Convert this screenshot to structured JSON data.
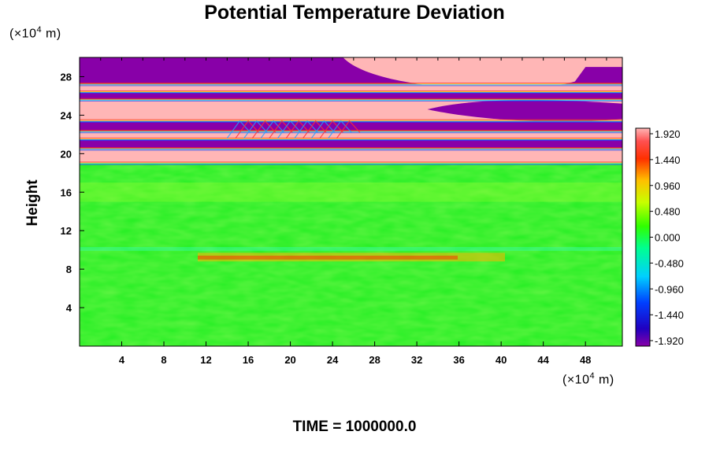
{
  "chart_data": {
    "type": "heatmap",
    "title": "Potential Temperature Deviation",
    "ylabel": "Height",
    "xlabel": "",
    "x_unit": "m",
    "y_unit": "m",
    "unit_scale_prefix": "(×10",
    "unit_scale_exp": "4",
    "unit_suffix": "m)",
    "footer": "TIME = 1000000.0",
    "xlim": [
      0,
      51.5
    ],
    "ylim": [
      0,
      30
    ],
    "x_ticks": [
      4,
      8,
      12,
      16,
      20,
      24,
      28,
      32,
      36,
      40,
      44,
      48
    ],
    "y_ticks": [
      4,
      8,
      12,
      16,
      20,
      24,
      28
    ],
    "colorbar": {
      "min": -1.92,
      "max": 1.92,
      "labels": [
        "1.920",
        "1.440",
        "0.960",
        "0.480",
        "0.000",
        "-0.480",
        "-0.960",
        "-1.440",
        "-1.920"
      ]
    },
    "regions": [
      {
        "y_range": [
          0,
          9
        ],
        "value": 0.1
      },
      {
        "y_range": [
          9,
          10.5
        ],
        "value": 0.4
      },
      {
        "y_range": [
          10.5,
          19
        ],
        "value": 0.15
      },
      {
        "y_range": [
          19,
          30
        ],
        "value": "alternating ±1.92 layers"
      }
    ],
    "colors": {
      "max": "#ffb6b6",
      "min": "#8800a8",
      "neutral": "#22ee22"
    }
  }
}
